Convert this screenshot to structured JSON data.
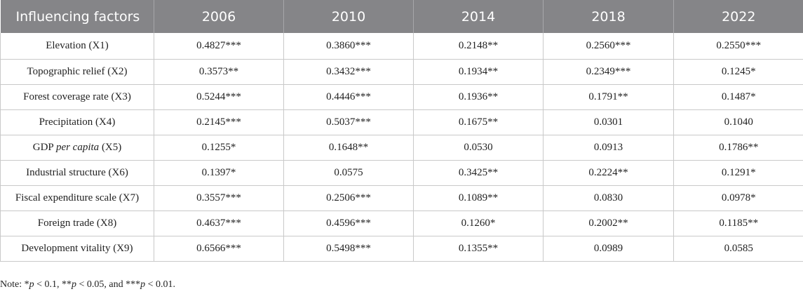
{
  "header": {
    "factor_label": "Influencing factors",
    "years": [
      "2006",
      "2010",
      "2014",
      "2018",
      "2022"
    ]
  },
  "rows": [
    {
      "pre": "Elevation (X1)",
      "it": "",
      "post": "",
      "values": [
        "0.4827***",
        "0.3860***",
        "0.2148**",
        "0.2560***",
        "0.2550***"
      ]
    },
    {
      "pre": "Topographic relief (X2)",
      "it": "",
      "post": "",
      "values": [
        "0.3573**",
        "0.3432***",
        "0.1934**",
        "0.2349***",
        "0.1245*"
      ]
    },
    {
      "pre": "Forest coverage rate (X3)",
      "it": "",
      "post": "",
      "values": [
        "0.5244***",
        "0.4446***",
        "0.1936**",
        "0.1791**",
        "0.1487*"
      ]
    },
    {
      "pre": "Precipitation (X4)",
      "it": "",
      "post": "",
      "values": [
        "0.2145***",
        "0.5037***",
        "0.1675**",
        "0.0301",
        "0.1040"
      ]
    },
    {
      "pre": "GDP ",
      "it": "per capita",
      "post": " (X5)",
      "values": [
        "0.1255*",
        "0.1648**",
        "0.0530",
        "0.0913",
        "0.1786**"
      ]
    },
    {
      "pre": "Industrial structure (X6)",
      "it": "",
      "post": "",
      "values": [
        "0.1397*",
        "0.0575",
        "0.3425**",
        "0.2224**",
        "0.1291*"
      ]
    },
    {
      "pre": "Fiscal expenditure scale (X7)",
      "it": "",
      "post": "",
      "values": [
        "0.3557***",
        "0.2506***",
        "0.1089**",
        "0.0830",
        "0.0978*"
      ]
    },
    {
      "pre": "Foreign trade (X8)",
      "it": "",
      "post": "",
      "values": [
        "0.4637***",
        "0.4596***",
        "0.1260*",
        "0.2002**",
        "0.1185**"
      ]
    },
    {
      "pre": "Development vitality (X9)",
      "it": "",
      "post": "",
      "values": [
        "0.6566***",
        "0.5498***",
        "0.1355**",
        "0.0989",
        "0.0585"
      ]
    }
  ],
  "note": {
    "s1": "Note: *",
    "p": "p",
    "s2": " < 0.1, **",
    "s3": " < 0.05, and ***",
    "s4": " < 0.01."
  }
}
